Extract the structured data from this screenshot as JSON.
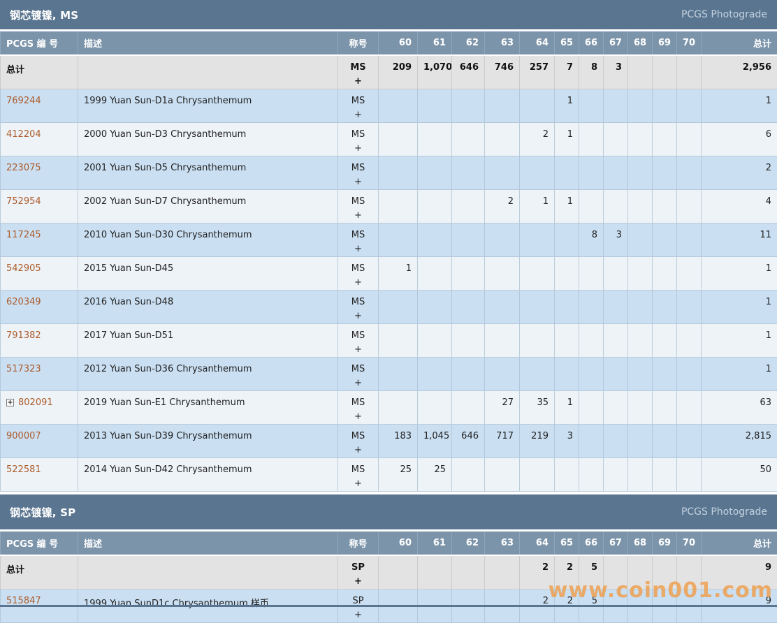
{
  "photograde_label": "PCGS Photograde",
  "watermark": {
    "text": "www.coin001.com",
    "color": "#ee9e4a"
  },
  "expand_icon_glyph": "+",
  "columns": {
    "pcgs": "PCGS 编 号",
    "desc": "描述",
    "designation": "称号",
    "grades": [
      "60",
      "61",
      "62",
      "63",
      "64",
      "65",
      "66",
      "67",
      "68",
      "69",
      "70"
    ],
    "total": "总计"
  },
  "colors": {
    "section_bar": "#5a7590",
    "table_header": "#7c94aa",
    "totals_row_bg": "#e3e3e3",
    "row_blue": "#cadff2",
    "row_light": "#eef3f8",
    "link": "#ad5c2b",
    "watermark": "#ee9e4a"
  },
  "sections": [
    {
      "title": "钢芯镀镍, MS",
      "designation": "MS",
      "designation_plus": "+",
      "totals_label": "总计",
      "totals": {
        "grades": [
          "209",
          "1,070",
          "646",
          "746",
          "257",
          "7",
          "8",
          "3",
          "",
          "",
          ""
        ],
        "total": "2,956"
      },
      "rows": [
        {
          "pcgs_no": "769244",
          "expandable": false,
          "desc": "1999 Yuan Sun-D1a Chrysanthemum",
          "grades": [
            "",
            "",
            "",
            "",
            "",
            "1",
            "",
            "",
            "",
            "",
            ""
          ],
          "total": "1"
        },
        {
          "pcgs_no": "412204",
          "expandable": false,
          "desc": "2000 Yuan Sun-D3 Chrysanthemum",
          "grades": [
            "",
            "",
            "",
            "",
            "2",
            "1",
            "",
            "",
            "",
            "",
            ""
          ],
          "total": "6"
        },
        {
          "pcgs_no": "223075",
          "expandable": false,
          "desc": "2001 Yuan Sun-D5 Chrysanthemum",
          "grades": [
            "",
            "",
            "",
            "",
            "",
            "",
            "",
            "",
            "",
            "",
            ""
          ],
          "total": "2"
        },
        {
          "pcgs_no": "752954",
          "expandable": false,
          "desc": "2002 Yuan Sun-D7 Chrysanthemum",
          "grades": [
            "",
            "",
            "",
            "2",
            "1",
            "1",
            "",
            "",
            "",
            "",
            ""
          ],
          "total": "4"
        },
        {
          "pcgs_no": "117245",
          "expandable": false,
          "desc": "2010 Yuan Sun-D30 Chrysanthemum",
          "grades": [
            "",
            "",
            "",
            "",
            "",
            "",
            "8",
            "3",
            "",
            "",
            ""
          ],
          "total": "11"
        },
        {
          "pcgs_no": "542905",
          "expandable": false,
          "desc": "2015 Yuan Sun-D45",
          "grades": [
            "1",
            "",
            "",
            "",
            "",
            "",
            "",
            "",
            "",
            "",
            ""
          ],
          "total": "1"
        },
        {
          "pcgs_no": "620349",
          "expandable": false,
          "desc": "2016 Yuan Sun-D48",
          "grades": [
            "",
            "",
            "",
            "",
            "",
            "",
            "",
            "",
            "",
            "",
            ""
          ],
          "total": "1"
        },
        {
          "pcgs_no": "791382",
          "expandable": false,
          "desc": "2017 Yuan Sun-D51",
          "grades": [
            "",
            "",
            "",
            "",
            "",
            "",
            "",
            "",
            "",
            "",
            ""
          ],
          "total": "1"
        },
        {
          "pcgs_no": "517323",
          "expandable": false,
          "desc": "2012 Yuan Sun-D36 Chrysanthemum",
          "grades": [
            "",
            "",
            "",
            "",
            "",
            "",
            "",
            "",
            "",
            "",
            ""
          ],
          "total": "1"
        },
        {
          "pcgs_no": "802091",
          "expandable": true,
          "desc": "2019 Yuan Sun-E1 Chrysanthemum",
          "grades": [
            "",
            "",
            "",
            "27",
            "35",
            "1",
            "",
            "",
            "",
            "",
            ""
          ],
          "total": "63"
        },
        {
          "pcgs_no": "900007",
          "expandable": false,
          "desc": "2013 Yuan Sun-D39 Chrysanthemum",
          "grades": [
            "183",
            "1,045",
            "646",
            "717",
            "219",
            "3",
            "",
            "",
            "",
            "",
            ""
          ],
          "total": "2,815"
        },
        {
          "pcgs_no": "522581",
          "expandable": false,
          "desc": "2014 Yuan Sun-D42 Chrysanthemum",
          "grades": [
            "25",
            "25",
            "",
            "",
            "",
            "",
            "",
            "",
            "",
            "",
            ""
          ],
          "total": "50"
        }
      ]
    },
    {
      "title": "钢芯镀镍, SP",
      "designation": "SP",
      "designation_plus": "+",
      "totals_label": "总计",
      "totals": {
        "grades": [
          "",
          "",
          "",
          "",
          "2",
          "2",
          "5",
          "",
          "",
          "",
          ""
        ],
        "total": "9"
      },
      "rows": [
        {
          "pcgs_no": "515847",
          "expandable": false,
          "desc": "1999 Yuan SunD1c Chrysanthemum 样币",
          "grades": [
            "",
            "",
            "",
            "",
            "2",
            "2",
            "5",
            "",
            "",
            "",
            ""
          ],
          "total": "9"
        }
      ]
    }
  ]
}
